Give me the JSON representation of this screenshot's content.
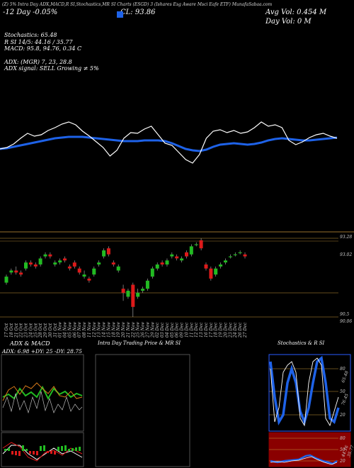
{
  "header": {
    "line1": "(Z) 5% Intra Day ADX,MACD,R SI,Stochastics,MR SI Charts (ESGD) 3 (Ishares Esg Aware Msci Eafe ETF) MunafaSabaa.com",
    "change": "-12 Day -0.05%",
    "close": "CL: 93.86",
    "avg_vol": "Avg Vol: 0.454 M",
    "day_vol": "Day Vol: 0 M",
    "indicators": [
      "Stochastics: 65.48",
      "R SI 14/5: 44.16 / 35.77",
      "MACD: 95.8, 94.76, 0.34 C",
      "",
      "ADX: (MGR) 7, 23, 28.8",
      "ADX signal: SELL Growing ≠ 5%"
    ]
  },
  "colors": {
    "up": "#22bb22",
    "down": "#dd1a1a",
    "rsi_line": "#ffffff",
    "ma_line": "#1e62e8",
    "gold": "#c9963a",
    "panel_red": "#8a0000",
    "panel_blue_border": "#2a5cff"
  },
  "chart_data": [
    {
      "type": "line",
      "series": [
        {
          "values": [
            40,
            42,
            47,
            55,
            62,
            58,
            60,
            66,
            70,
            75,
            78,
            74,
            65,
            58,
            50,
            42,
            30,
            38,
            55,
            63,
            62,
            68,
            72,
            60,
            48,
            45,
            35,
            25,
            20,
            32,
            55,
            65,
            67,
            63,
            66,
            62,
            64,
            70,
            78,
            72,
            74,
            70,
            52,
            46,
            50,
            56,
            60,
            62,
            58,
            55
          ]
        },
        {
          "values": [
            40,
            41,
            43,
            45,
            47,
            49,
            51,
            53,
            55,
            56,
            57,
            57,
            57,
            56,
            55,
            54,
            53,
            52,
            51,
            51,
            51,
            52,
            52,
            52,
            51,
            48,
            44,
            40,
            38,
            37,
            39,
            43,
            46,
            47,
            48,
            47,
            46,
            47,
            49,
            52,
            54,
            55,
            54,
            53,
            52,
            52,
            53,
            54,
            55,
            56
          ]
        }
      ]
    },
    {
      "type": "bar",
      "subtype": "candlestick",
      "price_labels": [
        "93.28",
        "93.02",
        "90.5",
        "90.06"
      ],
      "categories": [
        "17 Oct",
        "18 Oct",
        "21 Oct",
        "22 Oct",
        "23 Oct",
        "24 Oct",
        "25 Oct",
        "28 Oct",
        "29 Oct",
        "30 Oct",
        "31 Oct",
        "01 Nov",
        "04 Nov",
        "05 Nov",
        "06 Nov",
        "07 Nov",
        "08 Nov",
        "11 Nov",
        "12 Nov",
        "13 Nov",
        "14 Nov",
        "15 Nov",
        "18 Nov",
        "19 Nov",
        "20 Nov",
        "21 Nov",
        "22 Nov",
        "25 Nov",
        "26 Nov",
        "27 Nov",
        "29 Nov",
        "02 Dec",
        "03 Dec",
        "04 Dec",
        "05 Dec",
        "06 Dec",
        "09 Dec",
        "10 Dec",
        "11 Dec",
        "12 Dec",
        "13 Dec",
        "16 Dec",
        "17 Dec",
        "18 Dec",
        "19 Dec",
        "20 Dec",
        "23 Dec",
        "24 Dec",
        "26 Dec",
        "27 Dec"
      ],
      "candles": [
        {
          "o": 91.7,
          "c": 92.0,
          "h": 92.1,
          "l": 91.6
        },
        {
          "o": 92.2,
          "c": 92.3,
          "h": 92.4,
          "l": 92.1
        },
        {
          "o": 92.3,
          "c": 92.2,
          "h": 92.5,
          "l": 92.1
        },
        {
          "o": 92.2,
          "c": 92.1,
          "h": 92.3,
          "l": 92.0
        },
        {
          "o": 92.4,
          "c": 92.7,
          "h": 92.8,
          "l": 92.3
        },
        {
          "o": 92.7,
          "c": 92.6,
          "h": 92.8,
          "l": 92.5
        },
        {
          "o": 92.6,
          "c": 92.5,
          "h": 92.7,
          "l": 92.4
        },
        {
          "o": 92.6,
          "c": 92.9,
          "h": 93.0,
          "l": 92.5
        },
        {
          "o": 93.0,
          "c": 93.1,
          "h": 93.2,
          "l": 92.9
        },
        {
          "o": 93.1,
          "c": 93.0,
          "h": 93.2,
          "l": 92.9
        },
        {
          "o": 92.6,
          "c": 92.7,
          "h": 92.8,
          "l": 92.5
        },
        {
          "o": 92.7,
          "c": 92.8,
          "h": 92.9,
          "l": 92.6
        },
        {
          "o": 92.9,
          "c": 92.8,
          "h": 93.0,
          "l": 92.7
        },
        {
          "o": 92.5,
          "c": 92.4,
          "h": 92.6,
          "l": 92.3
        },
        {
          "o": 92.7,
          "c": 92.5,
          "h": 92.8,
          "l": 92.4
        },
        {
          "o": 92.4,
          "c": 92.2,
          "h": 92.5,
          "l": 92.1
        },
        {
          "o": 92.0,
          "c": 92.1,
          "h": 92.3,
          "l": 91.9
        },
        {
          "o": 91.9,
          "c": 91.8,
          "h": 92.0,
          "l": 91.7
        },
        {
          "o": 92.1,
          "c": 92.4,
          "h": 92.5,
          "l": 92.0
        },
        {
          "o": 92.6,
          "c": 92.7,
          "h": 92.8,
          "l": 92.5
        },
        {
          "o": 93.0,
          "c": 93.3,
          "h": 93.4,
          "l": 92.9
        },
        {
          "o": 93.4,
          "c": 93.1,
          "h": 93.5,
          "l": 93.0
        },
        {
          "o": 92.7,
          "c": 92.6,
          "h": 92.8,
          "l": 92.5
        },
        {
          "o": 92.3,
          "c": 92.5,
          "h": 92.6,
          "l": 92.2
        },
        {
          "o": 91.4,
          "c": 91.2,
          "h": 91.6,
          "l": 90.8
        },
        {
          "o": 91.0,
          "c": 91.3,
          "h": 91.4,
          "l": 90.9
        },
        {
          "o": 91.6,
          "c": 90.5,
          "h": 91.7,
          "l": 90.0
        },
        {
          "o": 91.0,
          "c": 91.2,
          "h": 91.4,
          "l": 90.9
        },
        {
          "o": 91.3,
          "c": 91.4,
          "h": 91.5,
          "l": 91.2
        },
        {
          "o": 91.4,
          "c": 91.8,
          "h": 91.9,
          "l": 91.3
        },
        {
          "o": 92.0,
          "c": 92.4,
          "h": 92.5,
          "l": 91.9
        },
        {
          "o": 92.4,
          "c": 92.6,
          "h": 92.7,
          "l": 92.3
        },
        {
          "o": 92.7,
          "c": 92.6,
          "h": 92.8,
          "l": 92.5
        },
        {
          "o": 92.6,
          "c": 92.8,
          "h": 92.9,
          "l": 92.5
        },
        {
          "o": 93.0,
          "c": 93.1,
          "h": 93.2,
          "l": 92.9
        },
        {
          "o": 93.0,
          "c": 92.9,
          "h": 93.1,
          "l": 92.8
        },
        {
          "o": 92.8,
          "c": 92.9,
          "h": 93.0,
          "l": 92.7
        },
        {
          "o": 93.2,
          "c": 93.0,
          "h": 93.3,
          "l": 92.9
        },
        {
          "o": 93.1,
          "c": 93.5,
          "h": 93.6,
          "l": 93.0
        },
        {
          "o": 93.6,
          "c": 93.6,
          "h": 93.7,
          "l": 93.5
        },
        {
          "o": 93.8,
          "c": 93.4,
          "h": 93.9,
          "l": 93.3
        },
        {
          "o": 92.6,
          "c": 92.4,
          "h": 92.7,
          "l": 92.3
        },
        {
          "o": 92.4,
          "c": 91.9,
          "h": 92.5,
          "l": 91.8
        },
        {
          "o": 92.1,
          "c": 92.4,
          "h": 92.5,
          "l": 92.0
        },
        {
          "o": 92.5,
          "c": 92.6,
          "h": 92.7,
          "l": 92.4
        },
        {
          "o": 92.7,
          "c": 92.8,
          "h": 92.9,
          "l": 92.6
        },
        {
          "o": 93.0,
          "c": 93.0,
          "h": 93.1,
          "l": 92.9
        },
        {
          "o": 93.1,
          "c": 93.1,
          "h": 93.2,
          "l": 93.0
        },
        {
          "o": 93.2,
          "c": 93.2,
          "h": 93.3,
          "l": 93.1
        },
        {
          "o": 93.1,
          "c": 93.0,
          "h": 93.2,
          "l": 92.9
        }
      ]
    }
  ],
  "panels": {
    "adx_title": "ADX & MACD",
    "adx_values": "ADX: 6.98  +DY: 25  -DY: 28.75",
    "intraday_title": "Intra Day Trading Price & MR SI",
    "stoch_title": "Stochastics & R SI",
    "stoch_ticks": [
      "80",
      "50",
      "20"
    ],
    "stoch_vals": [
      "65.48",
      "76.45"
    ],
    "rsi_ticks": [
      "80",
      "50",
      "20"
    ],
    "rsi_vals": [
      "44.16",
      "35.77"
    ]
  }
}
